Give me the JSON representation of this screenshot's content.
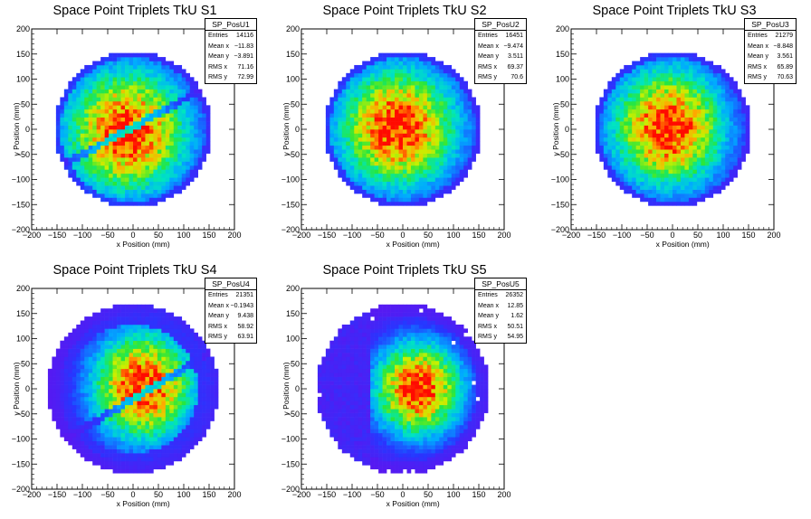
{
  "chart_data": [
    {
      "type": "heatmap",
      "title": "Space Point Triplets TkU S1",
      "histogram": "SP_PosU1",
      "xlabel": "x Position (mm)",
      "ylabel": "y Position (mm)",
      "xlim": [
        -200,
        200
      ],
      "ylim": [
        -200,
        200
      ],
      "xticks": [
        -200,
        -150,
        -100,
        -50,
        0,
        50,
        100,
        150,
        200
      ],
      "yticks": [
        -200,
        -150,
        -100,
        -50,
        0,
        50,
        100,
        150,
        200
      ],
      "colormap": "rainbow",
      "bin_size_mm": 8,
      "stats": [
        {
          "label": "Entries",
          "value": "14116"
        },
        {
          "label": "Mean x",
          "value": "−11.83"
        },
        {
          "label": "Mean y",
          "value": "−3.891"
        },
        {
          "label": "RMS x",
          "value": "71.16"
        },
        {
          "label": "RMS y",
          "value": "72.99"
        }
      ],
      "distribution": {
        "radius": 155,
        "center_x": -11.83,
        "center_y": -3.891,
        "rms_x": 71.16,
        "rms_y": 72.99,
        "gap_line_slope": 0.55,
        "gap_line_offset": 5,
        "halo_level": 0
      }
    },
    {
      "type": "heatmap",
      "title": "Space Point Triplets TkU S2",
      "histogram": "SP_PosU2",
      "xlabel": "x Position (mm)",
      "ylabel": "y Position (mm)",
      "xlim": [
        -200,
        200
      ],
      "ylim": [
        -200,
        200
      ],
      "xticks": [
        -200,
        -150,
        -100,
        -50,
        0,
        50,
        100,
        150,
        200
      ],
      "yticks": [
        -200,
        -150,
        -100,
        -50,
        0,
        50,
        100,
        150,
        200
      ],
      "colormap": "rainbow",
      "bin_size_mm": 8,
      "stats": [
        {
          "label": "Entries",
          "value": "16451"
        },
        {
          "label": "Mean x",
          "value": "−9.474"
        },
        {
          "label": "Mean y",
          "value": "3.511"
        },
        {
          "label": "RMS x",
          "value": "69.37"
        },
        {
          "label": "RMS y",
          "value": "70.6"
        }
      ],
      "distribution": {
        "radius": 155,
        "center_x": -9.474,
        "center_y": 3.511,
        "rms_x": 69.37,
        "rms_y": 70.6,
        "gap_line_slope": 0,
        "gap_line_offset": 0,
        "halo_level": 0
      }
    },
    {
      "type": "heatmap",
      "title": "Space Point Triplets TkU S3",
      "histogram": "SP_PosU3",
      "xlabel": "x Position (mm)",
      "ylabel": "y Position (mm)",
      "xlim": [
        -200,
        200
      ],
      "ylim": [
        -200,
        200
      ],
      "xticks": [
        -200,
        -150,
        -100,
        -50,
        0,
        50,
        100,
        150,
        200
      ],
      "yticks": [
        -200,
        -150,
        -100,
        -50,
        0,
        50,
        100,
        150,
        200
      ],
      "colormap": "rainbow",
      "bin_size_mm": 8,
      "stats": [
        {
          "label": "Entries",
          "value": "21279"
        },
        {
          "label": "Mean x",
          "value": "−8.848"
        },
        {
          "label": "Mean y",
          "value": "3.561"
        },
        {
          "label": "RMS x",
          "value": "65.89"
        },
        {
          "label": "RMS y",
          "value": "70.63"
        }
      ],
      "distribution": {
        "radius": 155,
        "center_x": -8.848,
        "center_y": 3.561,
        "rms_x": 65.89,
        "rms_y": 70.63,
        "gap_line_slope": 0,
        "gap_line_offset": 0,
        "halo_level": 0
      }
    },
    {
      "type": "heatmap",
      "title": "Space Point Triplets TkU S4",
      "histogram": "SP_PosU4",
      "xlabel": "x Position (mm)",
      "ylabel": "y Position (mm)",
      "xlim": [
        -200,
        200
      ],
      "ylim": [
        -200,
        200
      ],
      "xticks": [
        -200,
        -150,
        -100,
        -50,
        0,
        50,
        100,
        150,
        200
      ],
      "yticks": [
        -200,
        -150,
        -100,
        -50,
        0,
        50,
        100,
        150,
        200
      ],
      "colormap": "rainbow",
      "bin_size_mm": 8,
      "stats": [
        {
          "label": "Entries",
          "value": "21351"
        },
        {
          "label": "Mean x",
          "value": "−0.1943"
        },
        {
          "label": "Mean y",
          "value": "9.438"
        },
        {
          "label": "RMS x",
          "value": "58.92"
        },
        {
          "label": "RMS y",
          "value": "63.91"
        }
      ],
      "distribution": {
        "radius": 158,
        "center_x": 20,
        "center_y": 5,
        "rms_x": 58.92,
        "rms_y": 63.91,
        "gap_line_slope": 0.6,
        "gap_line_offset": -20,
        "halo_level": 1
      }
    },
    {
      "type": "heatmap",
      "title": "Space Point Triplets TkU S5",
      "histogram": "SP_PosU5",
      "xlabel": "x Position (mm)",
      "ylabel": "y Position (mm)",
      "xlim": [
        -200,
        200
      ],
      "ylim": [
        -200,
        200
      ],
      "xticks": [
        -200,
        -150,
        -100,
        -50,
        0,
        50,
        100,
        150,
        200
      ],
      "yticks": [
        -200,
        -150,
        -100,
        -50,
        0,
        50,
        100,
        150,
        200
      ],
      "colormap": "rainbow",
      "bin_size_mm": 8,
      "stats": [
        {
          "label": "Entries",
          "value": "26352"
        },
        {
          "label": "Mean x",
          "value": "12.85"
        },
        {
          "label": "Mean y",
          "value": "1.62"
        },
        {
          "label": "RMS x",
          "value": "50.51"
        },
        {
          "label": "RMS y",
          "value": "54.95"
        }
      ],
      "distribution": {
        "radius": 160,
        "center_x": 30,
        "center_y": 0,
        "rms_x": 50.51,
        "rms_y": 54.95,
        "gap_line_slope": 0,
        "gap_line_offset": 0,
        "halo_level": 2
      }
    }
  ]
}
